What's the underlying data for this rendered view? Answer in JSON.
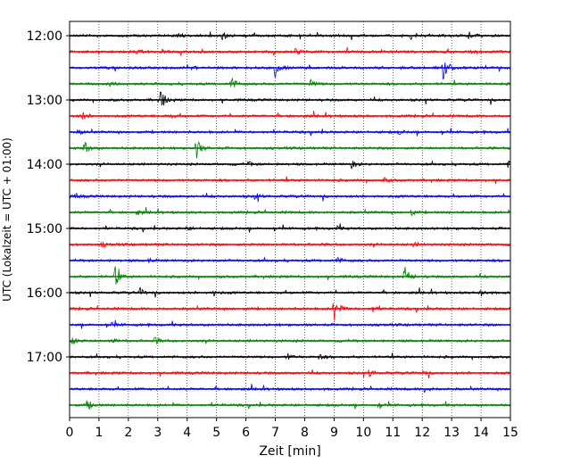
{
  "chart_data": {
    "type": "line",
    "subtype": "helicorder-seismogram",
    "xlabel": "Zeit  [min]",
    "ylabel": "UTC (Lokalzeit = UTC + 01:00)",
    "xlim": [
      0,
      15
    ],
    "x_ticks": [
      "0",
      "1",
      "2",
      "3",
      "4",
      "5",
      "6",
      "7",
      "8",
      "9",
      "10",
      "11",
      "12",
      "13",
      "14",
      "15"
    ],
    "y_ticks": [
      {
        "label": "12:00",
        "trace_index": 0
      },
      {
        "label": "13:00",
        "trace_index": 4
      },
      {
        "label": "14:00",
        "trace_index": 8
      },
      {
        "label": "15:00",
        "trace_index": 12
      },
      {
        "label": "16:00",
        "trace_index": 16
      },
      {
        "label": "17:00",
        "trace_index": 20
      }
    ],
    "grid": "vertical dotted at each minute",
    "trace_interval_minutes": 15,
    "trace_colors": [
      "#000000",
      "#ff0000",
      "#0000ff",
      "#008000"
    ],
    "traces": [
      {
        "start": "12:00",
        "color": "#000000",
        "bursts": [
          [
            3.7,
            0.25
          ],
          [
            5.2,
            0.35
          ],
          [
            11.6,
            0.4
          ],
          [
            13.6,
            0.3
          ]
        ]
      },
      {
        "start": "12:15",
        "color": "#ff0000",
        "bursts": [
          [
            7.7,
            0.3
          ],
          [
            2.3,
            0.2
          ],
          [
            13.7,
            0.2
          ]
        ]
      },
      {
        "start": "12:30",
        "color": "#0000ff",
        "bursts": [
          [
            7.0,
            0.9
          ],
          [
            12.7,
            1.0
          ],
          [
            4.0,
            0.3
          ]
        ]
      },
      {
        "start": "12:45",
        "color": "#008000",
        "bursts": [
          [
            5.5,
            0.6
          ],
          [
            8.2,
            0.4
          ],
          [
            1.4,
            0.2
          ]
        ]
      },
      {
        "start": "13:00",
        "color": "#000000",
        "bursts": [
          [
            3.1,
            0.9
          ]
        ]
      },
      {
        "start": "13:15",
        "color": "#ff0000",
        "bursts": [
          [
            0.4,
            0.45
          ],
          [
            3.4,
            0.2
          ]
        ]
      },
      {
        "start": "13:30",
        "color": "#0000ff",
        "bursts": [
          [
            0.3,
            0.2
          ],
          [
            11.2,
            0.2
          ]
        ]
      },
      {
        "start": "13:45",
        "color": "#008000",
        "bursts": [
          [
            0.5,
            0.6
          ],
          [
            4.3,
            1.0
          ]
        ]
      },
      {
        "start": "14:00",
        "color": "#000000",
        "bursts": [
          [
            9.6,
            0.35
          ],
          [
            14.9,
            0.3
          ],
          [
            6.1,
            0.2
          ]
        ]
      },
      {
        "start": "14:15",
        "color": "#ff0000",
        "bursts": [
          [
            10.7,
            0.2
          ]
        ]
      },
      {
        "start": "14:30",
        "color": "#0000ff",
        "bursts": [
          [
            6.3,
            0.3
          ],
          [
            0.2,
            0.2
          ]
        ]
      },
      {
        "start": "14:45",
        "color": "#008000",
        "bursts": [
          [
            2.3,
            0.2
          ],
          [
            11.6,
            0.25
          ]
        ]
      },
      {
        "start": "15:00",
        "color": "#000000",
        "bursts": [
          [
            4.0,
            0.2
          ],
          [
            9.1,
            0.2
          ]
        ]
      },
      {
        "start": "15:15",
        "color": "#ff0000",
        "bursts": [
          [
            1.1,
            0.2
          ],
          [
            11.7,
            0.2
          ]
        ]
      },
      {
        "start": "15:30",
        "color": "#0000ff",
        "bursts": [
          [
            9.1,
            0.3
          ],
          [
            2.7,
            0.2
          ]
        ]
      },
      {
        "start": "15:45",
        "color": "#008000",
        "bursts": [
          [
            1.55,
            0.9
          ],
          [
            11.4,
            1.0
          ]
        ]
      },
      {
        "start": "16:00",
        "color": "#000000",
        "bursts": [
          [
            2.4,
            0.35
          ],
          [
            14.0,
            0.35
          ],
          [
            4.9,
            0.25
          ]
        ]
      },
      {
        "start": "16:15",
        "color": "#ff0000",
        "bursts": [
          [
            9.0,
            1.3
          ],
          [
            10.3,
            0.3
          ]
        ]
      },
      {
        "start": "16:30",
        "color": "#0000ff",
        "bursts": [
          [
            1.4,
            0.25
          ]
        ]
      },
      {
        "start": "16:45",
        "color": "#008000",
        "bursts": [
          [
            0.1,
            0.35
          ],
          [
            1.4,
            0.35
          ],
          [
            2.9,
            0.3
          ]
        ]
      },
      {
        "start": "17:00",
        "color": "#000000",
        "bursts": [
          [
            7.4,
            0.3
          ],
          [
            8.5,
            0.25
          ]
        ]
      },
      {
        "start": "17:15",
        "color": "#ff0000",
        "bursts": [
          [
            10.2,
            0.3
          ],
          [
            12.0,
            0.2
          ]
        ]
      },
      {
        "start": "17:30",
        "color": "#0000ff",
        "bursts": [
          [
            12.1,
            0.4
          ]
        ]
      },
      {
        "start": "17:45",
        "color": "#008000",
        "bursts": [
          [
            0.6,
            0.45
          ],
          [
            10.5,
            0.2
          ]
        ]
      }
    ]
  }
}
